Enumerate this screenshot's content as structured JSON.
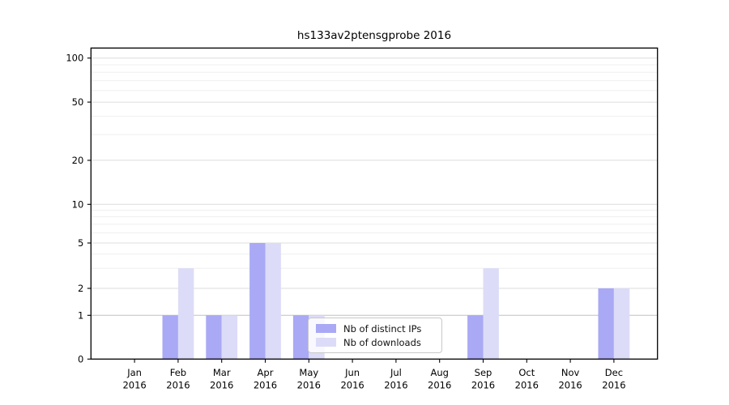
{
  "chart_data": {
    "type": "bar",
    "title": "hs133av2ptensgprobe 2016",
    "categories": [
      {
        "month": "Jan",
        "year": "2016"
      },
      {
        "month": "Feb",
        "year": "2016"
      },
      {
        "month": "Mar",
        "year": "2016"
      },
      {
        "month": "Apr",
        "year": "2016"
      },
      {
        "month": "May",
        "year": "2016"
      },
      {
        "month": "Jun",
        "year": "2016"
      },
      {
        "month": "Jul",
        "year": "2016"
      },
      {
        "month": "Aug",
        "year": "2016"
      },
      {
        "month": "Sep",
        "year": "2016"
      },
      {
        "month": "Oct",
        "year": "2016"
      },
      {
        "month": "Nov",
        "year": "2016"
      },
      {
        "month": "Dec",
        "year": "2016"
      }
    ],
    "series": [
      {
        "name": "Nb of distinct IPs",
        "color": "#a9a9f5",
        "values": [
          0,
          1,
          1,
          5,
          1,
          0,
          0,
          0,
          1,
          0,
          0,
          2
        ]
      },
      {
        "name": "Nb of downloads",
        "color": "#dcdcf8",
        "values": [
          0,
          3,
          1,
          5,
          1,
          0,
          0,
          0,
          3,
          0,
          0,
          2
        ]
      }
    ],
    "y_axis": {
      "scale": "symlog",
      "major_ticks": [
        0,
        1,
        2,
        5,
        10,
        20,
        50,
        100
      ],
      "minor_ticks": [
        3,
        4,
        6,
        7,
        8,
        9,
        30,
        40,
        60,
        70,
        80,
        90
      ],
      "range": [
        0,
        100
      ]
    },
    "legend_position": "lower center-left inside plot",
    "grid": "horizontal major and minor gridlines",
    "colors": {
      "axis": "#000000",
      "major_grid": "#dcdcdc",
      "baseline_grid_at_1": "#c0c0c0",
      "minor_grid": "#efefef",
      "tick_text": "#000000",
      "background": "#ffffff"
    }
  }
}
